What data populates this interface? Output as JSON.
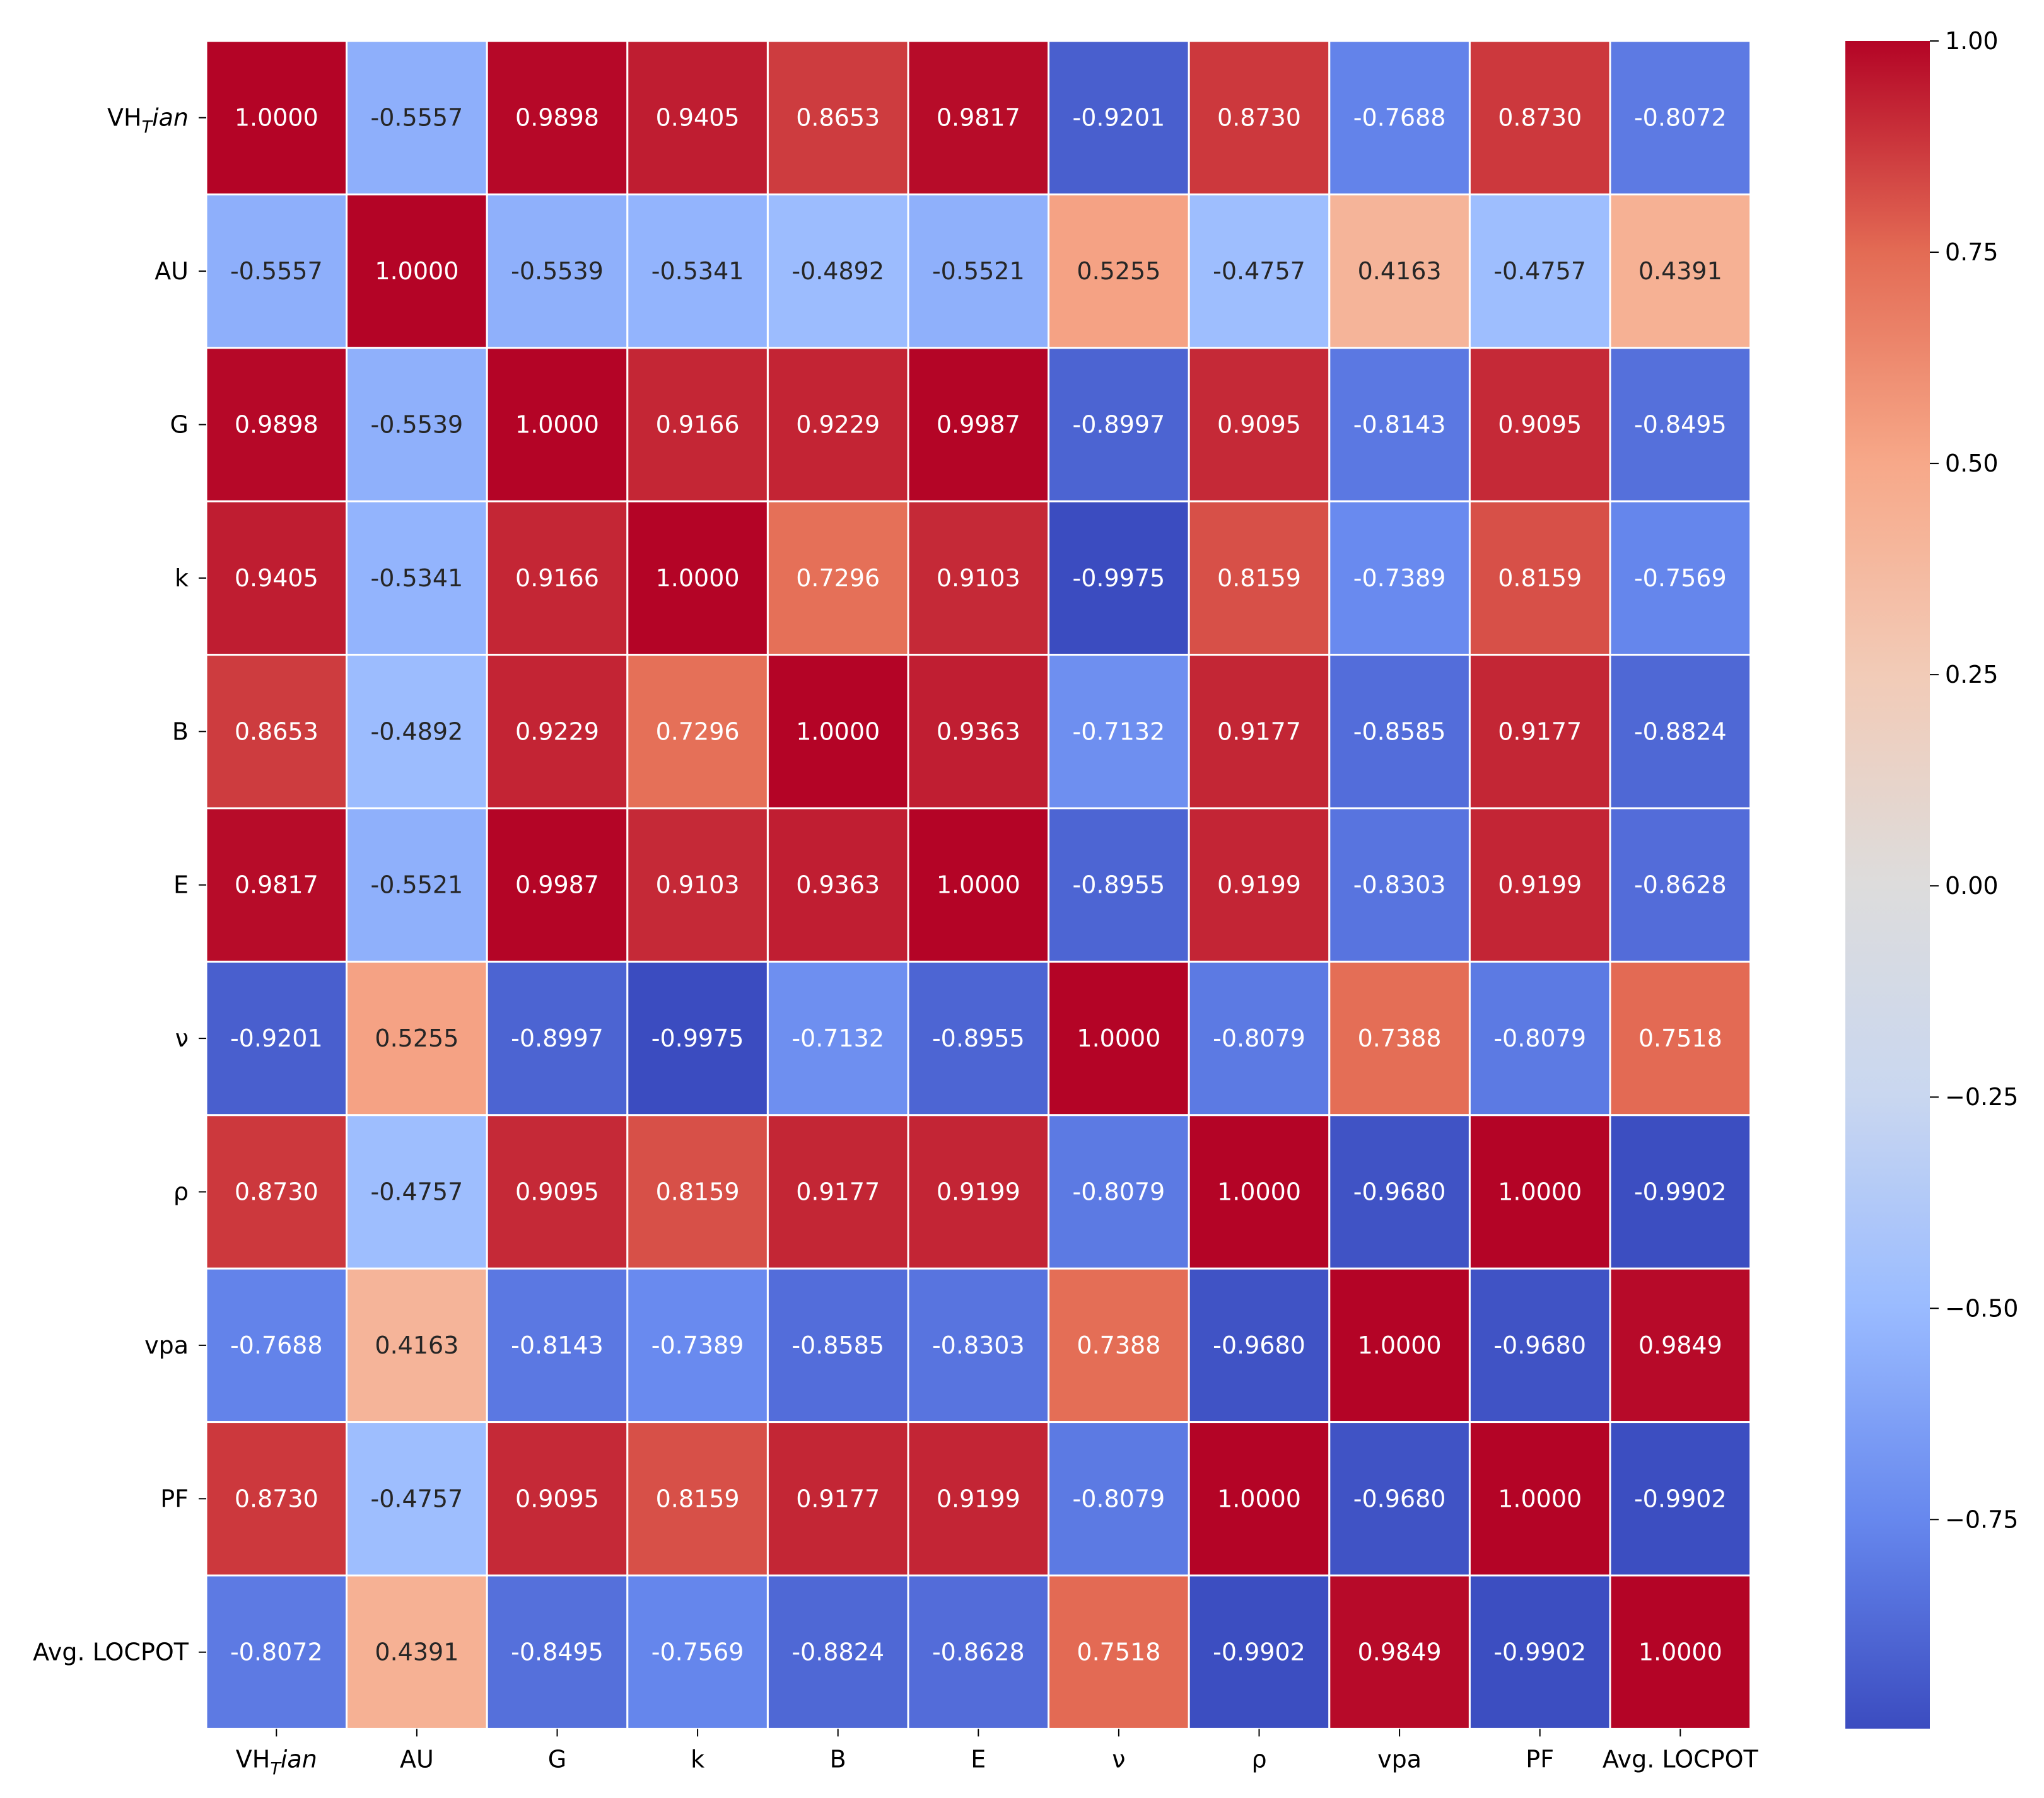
{
  "chart_data": {
    "type": "heatmap",
    "title": "",
    "xlabel": "",
    "ylabel": "",
    "row_labels": [
      {
        "base": "VH",
        "sub": "T",
        "suffix": "ian"
      },
      {
        "base": "AU",
        "sub": "",
        "suffix": ""
      },
      {
        "base": "G",
        "sub": "",
        "suffix": ""
      },
      {
        "base": "k",
        "sub": "",
        "suffix": ""
      },
      {
        "base": "B",
        "sub": "",
        "suffix": ""
      },
      {
        "base": "E",
        "sub": "",
        "suffix": ""
      },
      {
        "base": "ν",
        "sub": "",
        "suffix": ""
      },
      {
        "base": "ρ",
        "sub": "",
        "suffix": ""
      },
      {
        "base": "vpa",
        "sub": "",
        "suffix": ""
      },
      {
        "base": "PF",
        "sub": "",
        "suffix": ""
      },
      {
        "base": "Avg. LOCPOT",
        "sub": "",
        "suffix": ""
      }
    ],
    "col_labels": [
      {
        "base": "VH",
        "sub": "T",
        "suffix": "ian"
      },
      {
        "base": "AU",
        "sub": "",
        "suffix": ""
      },
      {
        "base": "G",
        "sub": "",
        "suffix": ""
      },
      {
        "base": "k",
        "sub": "",
        "suffix": ""
      },
      {
        "base": "B",
        "sub": "",
        "suffix": ""
      },
      {
        "base": "E",
        "sub": "",
        "suffix": ""
      },
      {
        "base": "ν",
        "sub": "",
        "suffix": ""
      },
      {
        "base": "ρ",
        "sub": "",
        "suffix": ""
      },
      {
        "base": "vpa",
        "sub": "",
        "suffix": ""
      },
      {
        "base": "PF",
        "sub": "",
        "suffix": ""
      },
      {
        "base": "Avg. LOCPOT",
        "sub": "",
        "suffix": ""
      }
    ],
    "values": [
      [
        1.0,
        -0.5557,
        0.9898,
        0.9405,
        0.8653,
        0.9817,
        -0.9201,
        0.873,
        -0.7688,
        0.873,
        -0.8072
      ],
      [
        -0.5557,
        1.0,
        -0.5539,
        -0.5341,
        -0.4892,
        -0.5521,
        0.5255,
        -0.4757,
        0.4163,
        -0.4757,
        0.4391
      ],
      [
        0.9898,
        -0.5539,
        1.0,
        0.9166,
        0.9229,
        0.9987,
        -0.8997,
        0.9095,
        -0.8143,
        0.9095,
        -0.8495
      ],
      [
        0.9405,
        -0.5341,
        0.9166,
        1.0,
        0.7296,
        0.9103,
        -0.9975,
        0.8159,
        -0.7389,
        0.8159,
        -0.7569
      ],
      [
        0.8653,
        -0.4892,
        0.9229,
        0.7296,
        1.0,
        0.9363,
        -0.7132,
        0.9177,
        -0.8585,
        0.9177,
        -0.8824
      ],
      [
        0.9817,
        -0.5521,
        0.9987,
        0.9103,
        0.9363,
        1.0,
        -0.8955,
        0.9199,
        -0.8303,
        0.9199,
        -0.8628
      ],
      [
        -0.9201,
        0.5255,
        -0.8997,
        -0.9975,
        -0.7132,
        -0.8955,
        1.0,
        -0.8079,
        0.7388,
        -0.8079,
        0.7518
      ],
      [
        0.873,
        -0.4757,
        0.9095,
        0.8159,
        0.9177,
        0.9199,
        -0.8079,
        1.0,
        -0.968,
        1.0,
        -0.9902
      ],
      [
        -0.7688,
        0.4163,
        -0.8143,
        -0.7389,
        -0.8585,
        -0.8303,
        0.7388,
        -0.968,
        1.0,
        -0.968,
        0.9849
      ],
      [
        0.873,
        -0.4757,
        0.9095,
        0.8159,
        0.9177,
        0.9199,
        -0.8079,
        1.0,
        -0.968,
        1.0,
        -0.9902
      ],
      [
        -0.8072,
        0.4391,
        -0.8495,
        -0.7569,
        -0.8824,
        -0.8628,
        0.7518,
        -0.9902,
        0.9849,
        -0.9902,
        1.0
      ]
    ],
    "colormap": "coolwarm",
    "vmin": -0.9975,
    "vmax": 1.0,
    "value_format": "4 decimals",
    "colorbar": {
      "ticks": [
        1.0,
        0.75,
        0.5,
        0.25,
        0.0,
        -0.25,
        -0.5,
        -0.75
      ],
      "tick_labels": [
        "1.00",
        "0.75",
        "0.50",
        "0.25",
        "0.00",
        "−0.25",
        "−0.50",
        "−0.75"
      ]
    },
    "colors": {
      "cmap_stops": [
        "#3b4cc0",
        "#6788ee",
        "#9abbff",
        "#c9d7f0",
        "#dddcdc",
        "#f2cbb7",
        "#f7a889",
        "#e36b54",
        "#b40426"
      ],
      "text_light": "#ffffff",
      "text_dark": "#262626",
      "grid_line": "#ffffff",
      "axis_text": "#000000"
    }
  }
}
